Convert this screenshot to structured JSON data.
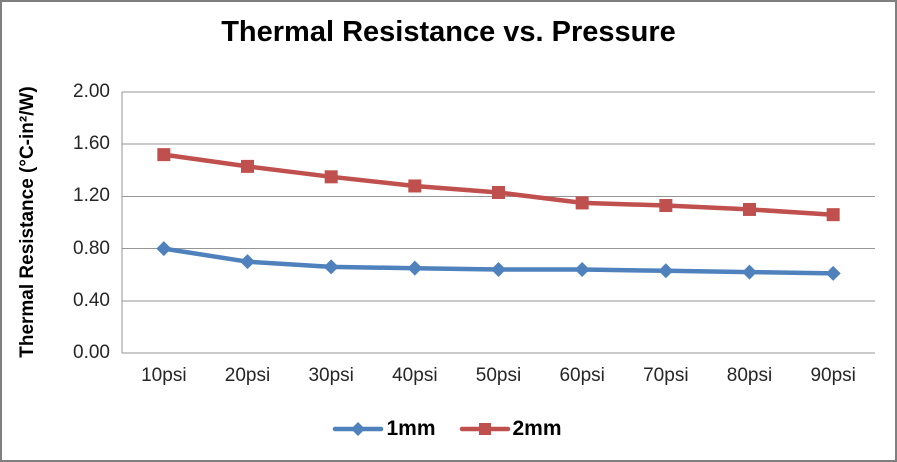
{
  "window": {
    "background": "#ffffff",
    "border_color": "#7f7f7f"
  },
  "chart_data": {
    "type": "line",
    "title": "Thermal Resistance vs. Pressure",
    "xlabel": "",
    "ylabel": "Thermal Resistance (°C-in²/W)",
    "categories": [
      "10psi",
      "20psi",
      "30psi",
      "40psi",
      "50psi",
      "60psi",
      "70psi",
      "80psi",
      "90psi"
    ],
    "series": [
      {
        "name": "1mm",
        "marker": "diamond",
        "color": "#4f81bd",
        "values": [
          0.8,
          0.7,
          0.66,
          0.65,
          0.64,
          0.64,
          0.63,
          0.62,
          0.61
        ]
      },
      {
        "name": "2mm",
        "marker": "square",
        "color": "#c0504d",
        "values": [
          1.52,
          1.43,
          1.35,
          1.28,
          1.23,
          1.15,
          1.13,
          1.1,
          1.06
        ]
      }
    ],
    "ylim": [
      0,
      2
    ],
    "ytick_labels": [
      "0.00",
      "0.40",
      "0.80",
      "1.20",
      "1.60",
      "2.00"
    ],
    "grid": true,
    "gridline_color": "#969696",
    "axis_line_color": "#969696",
    "tick_label_color": "#262626",
    "legend_position": "bottom"
  }
}
